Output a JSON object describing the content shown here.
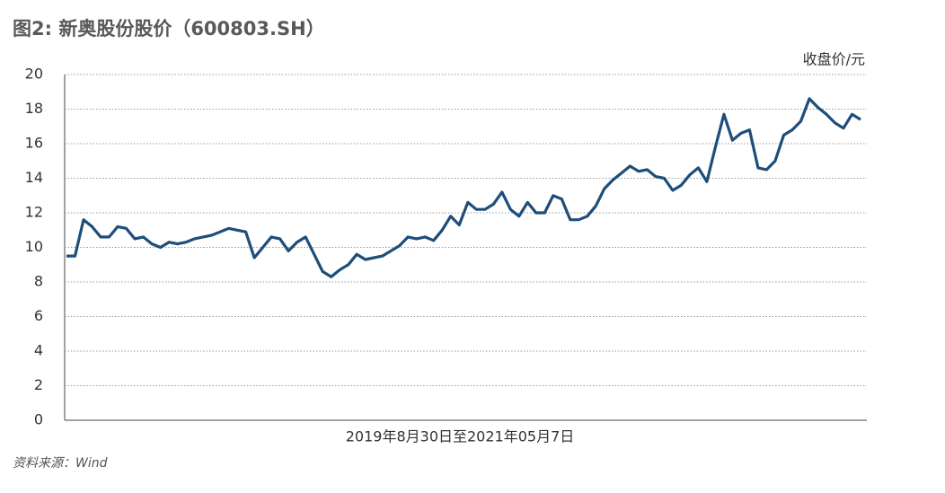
{
  "chart_data": {
    "type": "line",
    "title": "图2: 新奥股份股价（600803.SH）",
    "y_label": "收盘价/元",
    "x_label": "2019年8月30日至2021年05月7日",
    "source": "资料来源：Wind",
    "categories": [
      null,
      null,
      null,
      null,
      null,
      null,
      null,
      null,
      null,
      null,
      null,
      null,
      null,
      null,
      null,
      null,
      null,
      null,
      null,
      null,
      null,
      null,
      null,
      null,
      null,
      null,
      null,
      null,
      null,
      null,
      null,
      null,
      null,
      null,
      null,
      null,
      null,
      null,
      null,
      null,
      null,
      null,
      null,
      null,
      null,
      null,
      null,
      null,
      null,
      null,
      null,
      null,
      null,
      null,
      null,
      null,
      null,
      null,
      null,
      null,
      null,
      null,
      null,
      null,
      null,
      null,
      null,
      null,
      null,
      null,
      null,
      null,
      null,
      null,
      null,
      null,
      null,
      null,
      null,
      null,
      null,
      null,
      null,
      null,
      null,
      null,
      null,
      null,
      null,
      null,
      null,
      null,
      null,
      null
    ],
    "series": [
      {
        "name": "收盘价",
        "color": "#1d4e7a",
        "values": [
          9.5,
          9.5,
          11.6,
          11.2,
          10.6,
          10.6,
          11.2,
          11.1,
          10.5,
          10.6,
          10.2,
          10.0,
          10.3,
          10.2,
          10.3,
          10.5,
          10.6,
          10.7,
          10.9,
          11.1,
          11.0,
          10.9,
          9.4,
          10.0,
          10.6,
          10.5,
          9.8,
          10.3,
          10.6,
          9.6,
          8.6,
          8.3,
          8.7,
          9.0,
          9.6,
          9.3,
          9.4,
          9.5,
          9.8,
          10.1,
          10.6,
          10.5,
          10.6,
          10.4,
          11.0,
          11.8,
          11.3,
          12.6,
          12.2,
          12.2,
          12.5,
          13.2,
          12.2,
          11.8,
          12.6,
          12.0,
          12.0,
          13.0,
          12.8,
          11.6,
          11.6,
          11.8,
          12.4,
          13.4,
          13.9,
          14.3,
          14.7,
          14.4,
          14.5,
          14.1,
          14.0,
          13.3,
          13.6,
          14.2,
          14.6,
          13.8,
          15.8,
          17.7,
          16.2,
          16.6,
          16.8,
          14.6,
          14.5,
          15.0,
          16.5,
          16.8,
          17.3,
          18.6,
          18.1,
          17.7,
          17.2,
          16.9,
          17.7,
          17.4
        ]
      }
    ],
    "ylim": [
      0,
      20
    ],
    "yticks": [
      0,
      2,
      4,
      6,
      8,
      10,
      12,
      14,
      16,
      18,
      20
    ],
    "grid": true
  }
}
